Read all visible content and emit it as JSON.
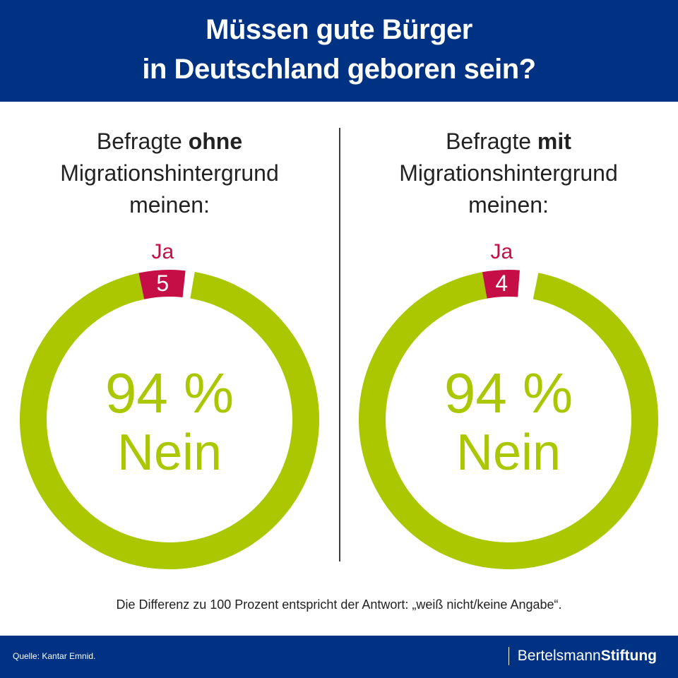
{
  "header": {
    "title_line1": "Müssen gute Bürger",
    "title_line2": "in Deutschland geboren sein?"
  },
  "panels": [
    {
      "heading_pre": "Befragte ",
      "heading_bold": "ohne",
      "heading_line2": "Migrationshintergrund",
      "heading_line3": "meinen:"
    },
    {
      "heading_pre": "Befragte ",
      "heading_bold": "mit",
      "heading_line2": "Migrationshintergrund",
      "heading_line3": "meinen:"
    }
  ],
  "chart_data": [
    {
      "type": "pie",
      "style": "donut",
      "title": "Befragte ohne Migrationshintergrund meinen:",
      "slices": [
        {
          "label": "Ja",
          "value": 5,
          "value_label": "5",
          "color": "#c40e45"
        },
        {
          "label": "Nein",
          "value": 94,
          "value_label": "94 %",
          "color": "#aac700"
        }
      ],
      "center_value": "94 %",
      "center_label": "Nein"
    },
    {
      "type": "pie",
      "style": "donut",
      "title": "Befragte mit Migrationshintergrund meinen:",
      "slices": [
        {
          "label": "Ja",
          "value": 4,
          "value_label": "4",
          "color": "#c40e45"
        },
        {
          "label": "Nein",
          "value": 94,
          "value_label": "94 %",
          "color": "#aac700"
        }
      ],
      "center_value": "94 %",
      "center_label": "Nein"
    }
  ],
  "note": "Die Differenz zu 100 Prozent entspricht der Antwort: „weiß nicht/keine Angabe“.",
  "footer": {
    "source": "Quelle: Kantar Emnid.",
    "brand_regular": "Bertelsmann",
    "brand_bold": "Stiftung"
  },
  "colors": {
    "header_bg": "#003283",
    "nein": "#aac700",
    "ja": "#c40e45"
  }
}
